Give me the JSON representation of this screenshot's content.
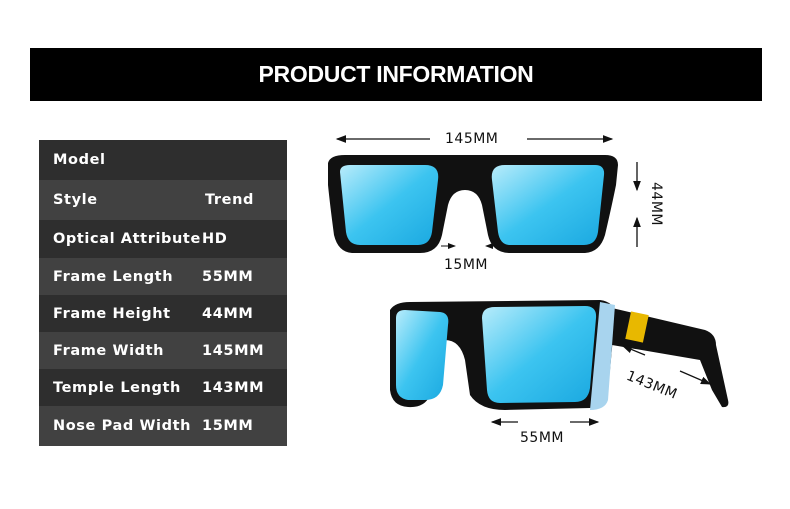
{
  "banner": {
    "title": "PRODUCT INFORMATION"
  },
  "specs": [
    {
      "label": "Model",
      "value": ""
    },
    {
      "label": "Style",
      "value": "Trend"
    },
    {
      "label": "Optical Attribute",
      "value": "HD"
    },
    {
      "label": "Frame Length",
      "value": "55MM"
    },
    {
      "label": "Frame Height",
      "value": "44MM"
    },
    {
      "label": "Frame Width",
      "value": "145MM"
    },
    {
      "label": "Temple Length",
      "value": "143MM"
    },
    {
      "label": "Nose Pad Width",
      "value": "15MM"
    }
  ],
  "dimensions": {
    "width": "145MM",
    "height": "44MM",
    "nose_pad": "15MM",
    "lens_length": "55MM",
    "temple": "143MM"
  },
  "colors": {
    "lens": "#3cc4f0",
    "frame": "#111111",
    "accent": "#a8d4ee",
    "logo": "#e8b800"
  }
}
